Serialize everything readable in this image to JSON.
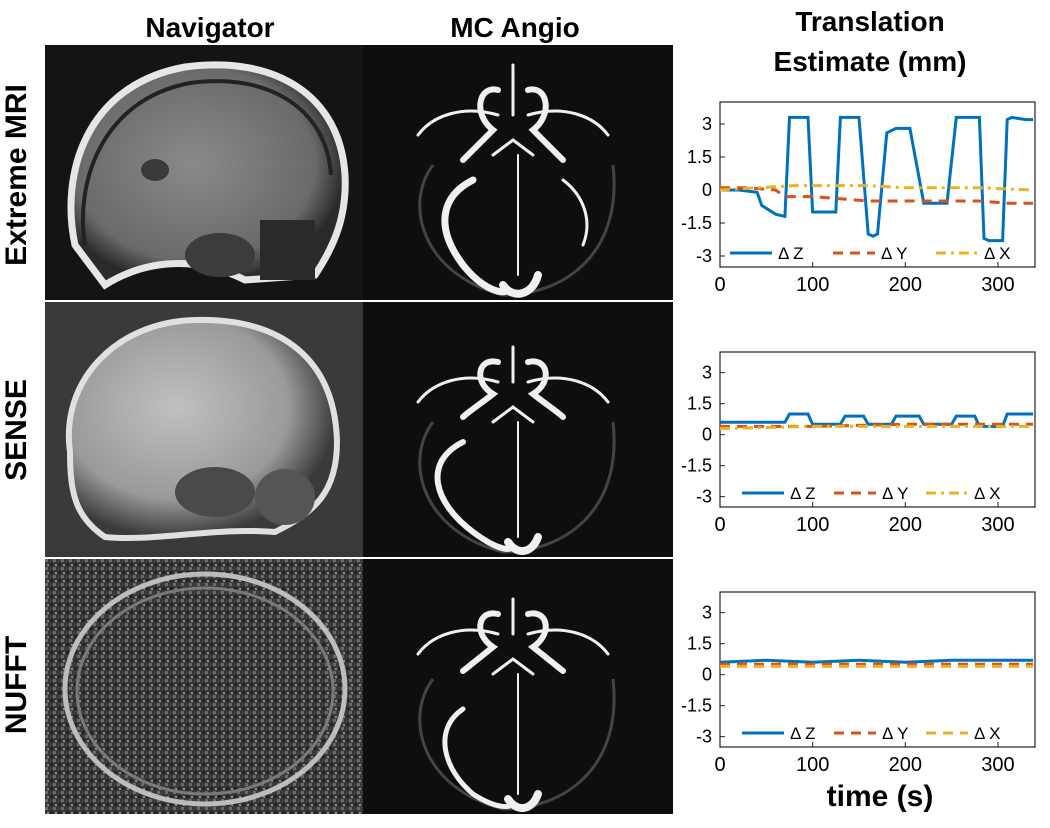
{
  "column_headers": {
    "navigator": "Navigator",
    "mc_angio": "MC Angio",
    "translation_line1": "Translation",
    "translation_line2": "Estimate (mm)"
  },
  "row_labels": [
    "Extreme MRI",
    "SENSE",
    "NUFFT"
  ],
  "x_axis_label": "time (s)",
  "colors": {
    "dz": "#0072BD",
    "dy": "#D95319",
    "dx": "#EDB120"
  },
  "chart_data": [
    {
      "type": "line",
      "row": "Extreme MRI",
      "xlim": [
        0,
        340
      ],
      "ylim": [
        -3.5,
        4
      ],
      "xticks": [
        0,
        100,
        200,
        300
      ],
      "xtick_labels": [
        "0",
        "100",
        "200",
        "300"
      ],
      "yticks": [
        3,
        1.5,
        0,
        -1.5,
        -3
      ],
      "ytick_labels": [
        "3",
        "1.5",
        "0",
        "-1.5",
        "-3"
      ],
      "legend": "bottom",
      "series": [
        {
          "name": "Δ Z",
          "style": "solid",
          "x": [
            0,
            20,
            40,
            45,
            60,
            70,
            75,
            80,
            95,
            100,
            105,
            125,
            130,
            135,
            150,
            160,
            165,
            170,
            180,
            185,
            190,
            205,
            220,
            225,
            230,
            245,
            255,
            260,
            265,
            280,
            285,
            290,
            305,
            310,
            315,
            330,
            338
          ],
          "y": [
            0,
            0,
            -0.1,
            -0.7,
            -1.1,
            -1.2,
            3.3,
            3.3,
            3.3,
            -1.0,
            -1.0,
            -1.0,
            3.3,
            3.3,
            3.3,
            -2.0,
            -2.1,
            -2.0,
            2.6,
            2.7,
            2.8,
            2.8,
            -0.6,
            -0.6,
            -0.6,
            -0.6,
            3.3,
            3.3,
            3.3,
            3.3,
            -2.2,
            -2.3,
            -2.3,
            3.2,
            3.3,
            3.2,
            3.2
          ]
        },
        {
          "name": "Δ Y",
          "style": "dashed",
          "x": [
            0,
            30,
            60,
            70,
            100,
            130,
            160,
            190,
            220,
            250,
            280,
            310,
            338
          ],
          "y": [
            0.1,
            0.1,
            0.0,
            -0.3,
            -0.3,
            -0.4,
            -0.5,
            -0.5,
            -0.5,
            -0.5,
            -0.5,
            -0.6,
            -0.6
          ]
        },
        {
          "name": "Δ X",
          "style": "dashdot",
          "x": [
            0,
            40,
            80,
            120,
            160,
            200,
            240,
            280,
            338
          ],
          "y": [
            0.0,
            0.1,
            0.2,
            0.2,
            0.2,
            0.1,
            0.1,
            0.1,
            0.0
          ]
        }
      ]
    },
    {
      "type": "line",
      "row": "SENSE",
      "xlim": [
        0,
        340
      ],
      "ylim": [
        -3.5,
        4
      ],
      "xticks": [
        0,
        100,
        200,
        300
      ],
      "xtick_labels": [
        "0",
        "100",
        "200",
        "300"
      ],
      "yticks": [
        3,
        1.5,
        0,
        -1.5,
        -3
      ],
      "ytick_labels": [
        "3",
        "1.5",
        "0",
        "-1.5",
        "-3"
      ],
      "legend": "bottom",
      "series": [
        {
          "name": "Δ Z",
          "style": "solid",
          "x": [
            0,
            60,
            70,
            75,
            95,
            100,
            130,
            135,
            155,
            160,
            185,
            190,
            215,
            220,
            250,
            255,
            275,
            280,
            305,
            310,
            325,
            338
          ],
          "y": [
            0.6,
            0.6,
            0.6,
            1.0,
            1.0,
            0.5,
            0.5,
            0.9,
            0.9,
            0.5,
            0.5,
            0.9,
            0.9,
            0.5,
            0.5,
            0.9,
            0.9,
            0.4,
            0.4,
            1.0,
            1.0,
            1.0
          ]
        },
        {
          "name": "Δ Y",
          "style": "dashed",
          "x": [
            0,
            100,
            200,
            300,
            338
          ],
          "y": [
            0.4,
            0.4,
            0.5,
            0.5,
            0.5
          ]
        },
        {
          "name": "Δ X",
          "style": "dashdot",
          "x": [
            0,
            100,
            200,
            300,
            338
          ],
          "y": [
            0.3,
            0.4,
            0.4,
            0.4,
            0.4
          ]
        }
      ]
    },
    {
      "type": "line",
      "row": "NUFFT",
      "xlim": [
        0,
        340
      ],
      "ylim": [
        -3.5,
        4
      ],
      "xticks": [
        0,
        100,
        200,
        300
      ],
      "xtick_labels": [
        "0",
        "100",
        "200",
        "300"
      ],
      "yticks": [
        3,
        1.5,
        0,
        -1.5,
        -3
      ],
      "ytick_labels": [
        "3",
        "1.5",
        "0",
        "-1.5",
        "-3"
      ],
      "legend": "bottom",
      "series": [
        {
          "name": "Δ Z",
          "style": "solid",
          "x": [
            0,
            50,
            100,
            150,
            200,
            250,
            300,
            338
          ],
          "y": [
            0.6,
            0.7,
            0.6,
            0.7,
            0.6,
            0.7,
            0.7,
            0.7
          ]
        },
        {
          "name": "Δ Y",
          "style": "dashed",
          "x": [
            0,
            100,
            200,
            300,
            338
          ],
          "y": [
            0.5,
            0.5,
            0.5,
            0.5,
            0.5
          ]
        },
        {
          "name": "Δ X",
          "style": "dashed",
          "x": [
            0,
            100,
            200,
            300,
            338
          ],
          "y": [
            0.4,
            0.4,
            0.4,
            0.4,
            0.4
          ]
        }
      ]
    }
  ]
}
